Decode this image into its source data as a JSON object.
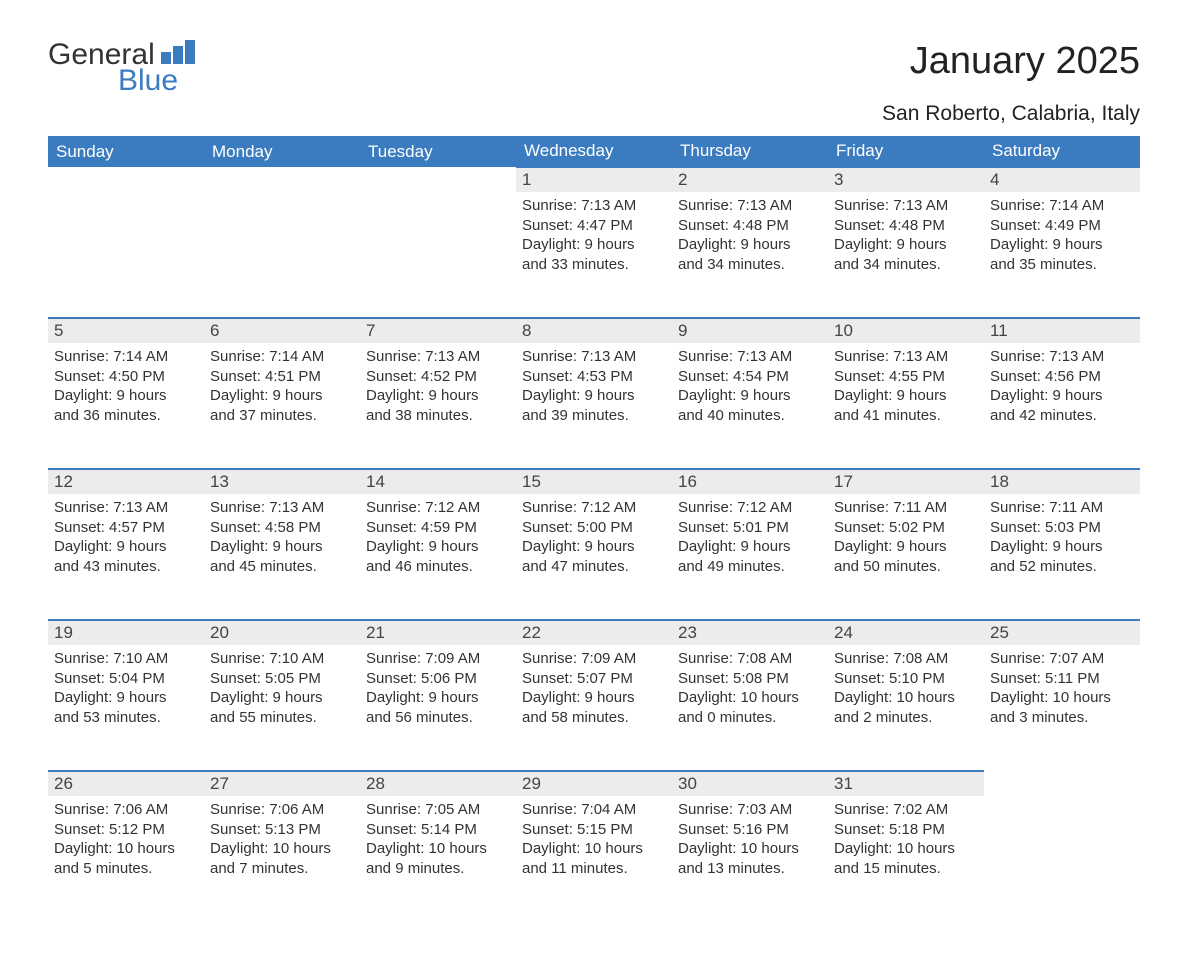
{
  "logo": {
    "word1": "General",
    "word2": "Blue"
  },
  "title": "January 2025",
  "location": "San Roberto, Calabria, Italy",
  "colors": {
    "header_bg": "#3b7bbf",
    "header_text": "#ffffff",
    "daynum_bg": "#ececec",
    "daynum_border": "#3b7bbf",
    "body_text": "#333333",
    "page_bg": "#ffffff"
  },
  "typography": {
    "title_fontsize": 38,
    "location_fontsize": 21,
    "header_fontsize": 17,
    "daynum_fontsize": 17,
    "body_fontsize": 15
  },
  "layout": {
    "cols": 7,
    "rows": 5,
    "first_day_col": 3
  },
  "weekdays": [
    "Sunday",
    "Monday",
    "Tuesday",
    "Wednesday",
    "Thursday",
    "Friday",
    "Saturday"
  ],
  "days": [
    {
      "n": "1",
      "sunrise": "Sunrise: 7:13 AM",
      "sunset": "Sunset: 4:47 PM",
      "d1": "Daylight: 9 hours",
      "d2": "and 33 minutes."
    },
    {
      "n": "2",
      "sunrise": "Sunrise: 7:13 AM",
      "sunset": "Sunset: 4:48 PM",
      "d1": "Daylight: 9 hours",
      "d2": "and 34 minutes."
    },
    {
      "n": "3",
      "sunrise": "Sunrise: 7:13 AM",
      "sunset": "Sunset: 4:48 PM",
      "d1": "Daylight: 9 hours",
      "d2": "and 34 minutes."
    },
    {
      "n": "4",
      "sunrise": "Sunrise: 7:14 AM",
      "sunset": "Sunset: 4:49 PM",
      "d1": "Daylight: 9 hours",
      "d2": "and 35 minutes."
    },
    {
      "n": "5",
      "sunrise": "Sunrise: 7:14 AM",
      "sunset": "Sunset: 4:50 PM",
      "d1": "Daylight: 9 hours",
      "d2": "and 36 minutes."
    },
    {
      "n": "6",
      "sunrise": "Sunrise: 7:14 AM",
      "sunset": "Sunset: 4:51 PM",
      "d1": "Daylight: 9 hours",
      "d2": "and 37 minutes."
    },
    {
      "n": "7",
      "sunrise": "Sunrise: 7:13 AM",
      "sunset": "Sunset: 4:52 PM",
      "d1": "Daylight: 9 hours",
      "d2": "and 38 minutes."
    },
    {
      "n": "8",
      "sunrise": "Sunrise: 7:13 AM",
      "sunset": "Sunset: 4:53 PM",
      "d1": "Daylight: 9 hours",
      "d2": "and 39 minutes."
    },
    {
      "n": "9",
      "sunrise": "Sunrise: 7:13 AM",
      "sunset": "Sunset: 4:54 PM",
      "d1": "Daylight: 9 hours",
      "d2": "and 40 minutes."
    },
    {
      "n": "10",
      "sunrise": "Sunrise: 7:13 AM",
      "sunset": "Sunset: 4:55 PM",
      "d1": "Daylight: 9 hours",
      "d2": "and 41 minutes."
    },
    {
      "n": "11",
      "sunrise": "Sunrise: 7:13 AM",
      "sunset": "Sunset: 4:56 PM",
      "d1": "Daylight: 9 hours",
      "d2": "and 42 minutes."
    },
    {
      "n": "12",
      "sunrise": "Sunrise: 7:13 AM",
      "sunset": "Sunset: 4:57 PM",
      "d1": "Daylight: 9 hours",
      "d2": "and 43 minutes."
    },
    {
      "n": "13",
      "sunrise": "Sunrise: 7:13 AM",
      "sunset": "Sunset: 4:58 PM",
      "d1": "Daylight: 9 hours",
      "d2": "and 45 minutes."
    },
    {
      "n": "14",
      "sunrise": "Sunrise: 7:12 AM",
      "sunset": "Sunset: 4:59 PM",
      "d1": "Daylight: 9 hours",
      "d2": "and 46 minutes."
    },
    {
      "n": "15",
      "sunrise": "Sunrise: 7:12 AM",
      "sunset": "Sunset: 5:00 PM",
      "d1": "Daylight: 9 hours",
      "d2": "and 47 minutes."
    },
    {
      "n": "16",
      "sunrise": "Sunrise: 7:12 AM",
      "sunset": "Sunset: 5:01 PM",
      "d1": "Daylight: 9 hours",
      "d2": "and 49 minutes."
    },
    {
      "n": "17",
      "sunrise": "Sunrise: 7:11 AM",
      "sunset": "Sunset: 5:02 PM",
      "d1": "Daylight: 9 hours",
      "d2": "and 50 minutes."
    },
    {
      "n": "18",
      "sunrise": "Sunrise: 7:11 AM",
      "sunset": "Sunset: 5:03 PM",
      "d1": "Daylight: 9 hours",
      "d2": "and 52 minutes."
    },
    {
      "n": "19",
      "sunrise": "Sunrise: 7:10 AM",
      "sunset": "Sunset: 5:04 PM",
      "d1": "Daylight: 9 hours",
      "d2": "and 53 minutes."
    },
    {
      "n": "20",
      "sunrise": "Sunrise: 7:10 AM",
      "sunset": "Sunset: 5:05 PM",
      "d1": "Daylight: 9 hours",
      "d2": "and 55 minutes."
    },
    {
      "n": "21",
      "sunrise": "Sunrise: 7:09 AM",
      "sunset": "Sunset: 5:06 PM",
      "d1": "Daylight: 9 hours",
      "d2": "and 56 minutes."
    },
    {
      "n": "22",
      "sunrise": "Sunrise: 7:09 AM",
      "sunset": "Sunset: 5:07 PM",
      "d1": "Daylight: 9 hours",
      "d2": "and 58 minutes."
    },
    {
      "n": "23",
      "sunrise": "Sunrise: 7:08 AM",
      "sunset": "Sunset: 5:08 PM",
      "d1": "Daylight: 10 hours",
      "d2": "and 0 minutes."
    },
    {
      "n": "24",
      "sunrise": "Sunrise: 7:08 AM",
      "sunset": "Sunset: 5:10 PM",
      "d1": "Daylight: 10 hours",
      "d2": "and 2 minutes."
    },
    {
      "n": "25",
      "sunrise": "Sunrise: 7:07 AM",
      "sunset": "Sunset: 5:11 PM",
      "d1": "Daylight: 10 hours",
      "d2": "and 3 minutes."
    },
    {
      "n": "26",
      "sunrise": "Sunrise: 7:06 AM",
      "sunset": "Sunset: 5:12 PM",
      "d1": "Daylight: 10 hours",
      "d2": "and 5 minutes."
    },
    {
      "n": "27",
      "sunrise": "Sunrise: 7:06 AM",
      "sunset": "Sunset: 5:13 PM",
      "d1": "Daylight: 10 hours",
      "d2": "and 7 minutes."
    },
    {
      "n": "28",
      "sunrise": "Sunrise: 7:05 AM",
      "sunset": "Sunset: 5:14 PM",
      "d1": "Daylight: 10 hours",
      "d2": "and 9 minutes."
    },
    {
      "n": "29",
      "sunrise": "Sunrise: 7:04 AM",
      "sunset": "Sunset: 5:15 PM",
      "d1": "Daylight: 10 hours",
      "d2": "and 11 minutes."
    },
    {
      "n": "30",
      "sunrise": "Sunrise: 7:03 AM",
      "sunset": "Sunset: 5:16 PM",
      "d1": "Daylight: 10 hours",
      "d2": "and 13 minutes."
    },
    {
      "n": "31",
      "sunrise": "Sunrise: 7:02 AM",
      "sunset": "Sunset: 5:18 PM",
      "d1": "Daylight: 10 hours",
      "d2": "and 15 minutes."
    }
  ]
}
